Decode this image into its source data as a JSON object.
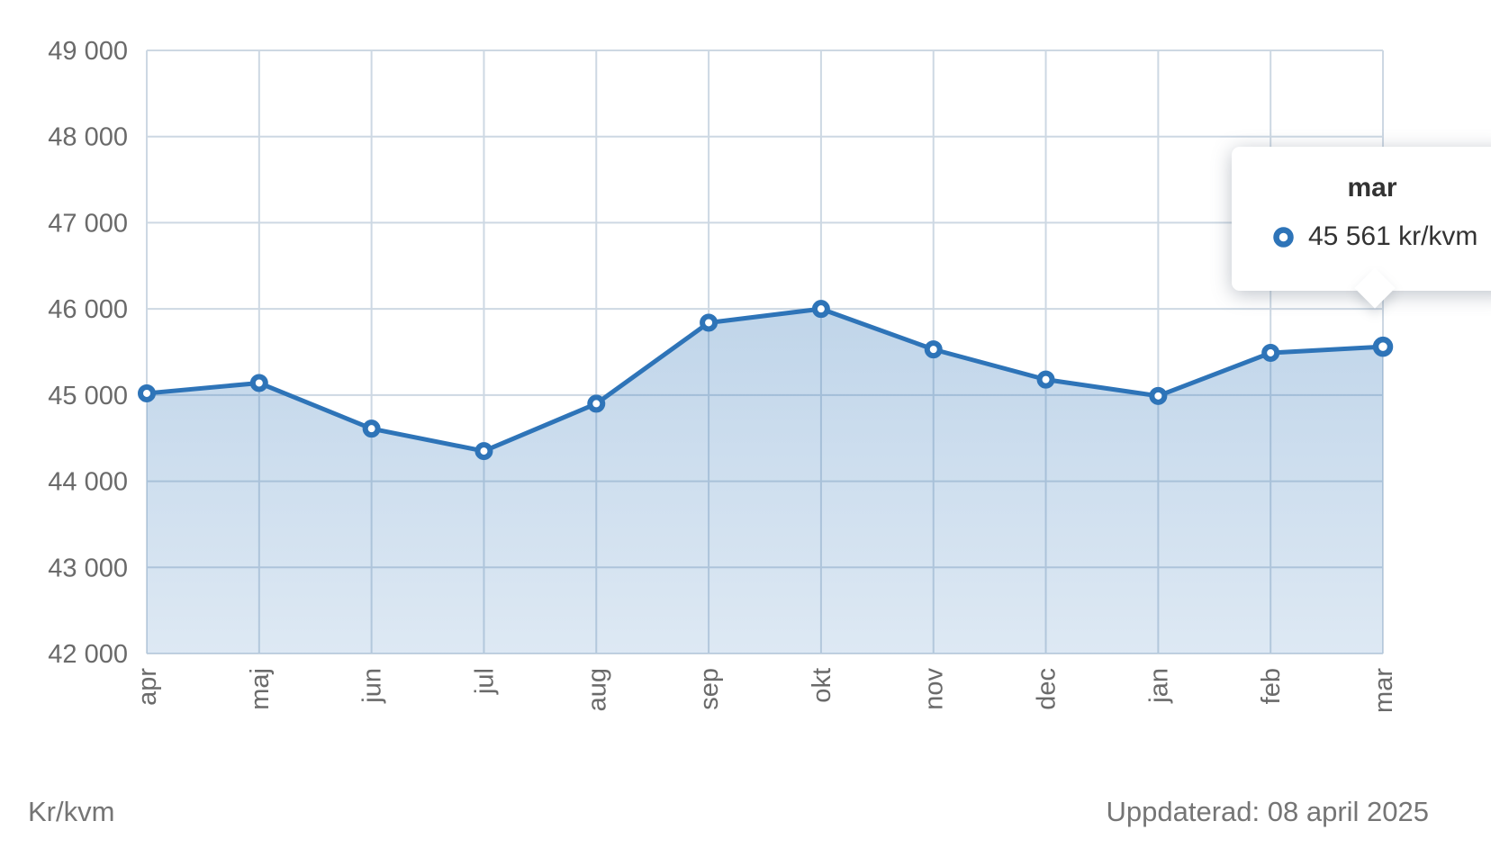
{
  "chart_data": {
    "type": "area",
    "title": "",
    "categories": [
      "apr",
      "maj",
      "jun",
      "jul",
      "aug",
      "sep",
      "okt",
      "nov",
      "dec",
      "jan",
      "feb",
      "mar"
    ],
    "series": [
      {
        "name": "Kr/kvm",
        "values": [
          45020,
          45140,
          44610,
          44350,
          44900,
          45840,
          46000,
          45530,
          45180,
          44990,
          45490,
          45561
        ]
      }
    ],
    "ylim": [
      42000,
      49000
    ],
    "y_ticks": [
      {
        "value": 49000,
        "label": "49 000"
      },
      {
        "value": 48000,
        "label": "48 000"
      },
      {
        "value": 47000,
        "label": "47 000"
      },
      {
        "value": 46000,
        "label": "46 000"
      },
      {
        "value": 45000,
        "label": "45 000"
      },
      {
        "value": 44000,
        "label": "44 000"
      },
      {
        "value": 43000,
        "label": "43 000"
      },
      {
        "value": 42000,
        "label": "42 000"
      }
    ],
    "grid": true,
    "legend": "none",
    "xlabel": "",
    "ylabel": "Kr/kvm"
  },
  "tooltip": {
    "title": "mar",
    "value": "45 561 kr/kvm"
  },
  "footer": {
    "unit_label": "Kr/kvm",
    "updated_label": "Uppdaterad: 08 april 2025"
  },
  "colors": {
    "line": "#2e74b8",
    "marker_fill": "#ffffff",
    "area_top": "rgba(46,116,184,0.30)",
    "area_bottom": "rgba(46,116,184,0.16)",
    "grid": "#cdd8e3",
    "axis_text": "#6a6a6a",
    "footer_text": "#757575",
    "tooltip_text": "#333333"
  }
}
